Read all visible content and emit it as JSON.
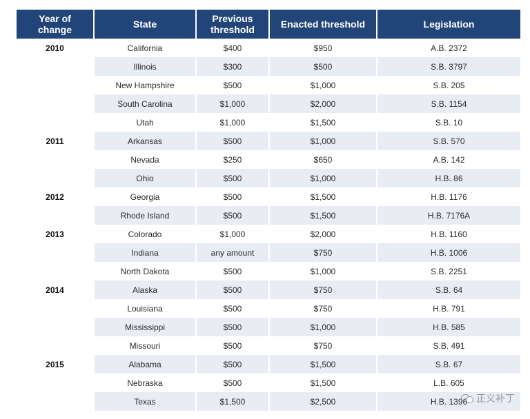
{
  "table": {
    "headers": {
      "year_line1": "Year of",
      "year_line2": "change",
      "state": "State",
      "prev_line1": "Previous",
      "prev_line2": "threshold",
      "enacted": "Enacted threshold",
      "legislation": "Legislation"
    },
    "rows": [
      {
        "year": "2010",
        "state": "California",
        "previous": "$400",
        "enacted": "$950",
        "legislation": "A.B. 2372"
      },
      {
        "year": "",
        "state": "Illinois",
        "previous": "$300",
        "enacted": "$500",
        "legislation": "S.B. 3797"
      },
      {
        "year": "",
        "state": "New Hampshire",
        "previous": "$500",
        "enacted": "$1,000",
        "legislation": "S.B. 205"
      },
      {
        "year": "",
        "state": "South Carolina",
        "previous": "$1,000",
        "enacted": "$2,000",
        "legislation": "S.B. 1154"
      },
      {
        "year": "",
        "state": "Utah",
        "previous": "$1,000",
        "enacted": "$1,500",
        "legislation": "S.B. 10"
      },
      {
        "year": "2011",
        "state": "Arkansas",
        "previous": "$500",
        "enacted": "$1,000",
        "legislation": "S.B. 570"
      },
      {
        "year": "",
        "state": "Nevada",
        "previous": "$250",
        "enacted": "$650",
        "legislation": "A.B. 142"
      },
      {
        "year": "",
        "state": "Ohio",
        "previous": "$500",
        "enacted": "$1,000",
        "legislation": "H.B. 86"
      },
      {
        "year": "2012",
        "state": "Georgia",
        "previous": "$500",
        "enacted": "$1,500",
        "legislation": "H.B. 1176"
      },
      {
        "year": "",
        "state": "Rhode Island",
        "previous": "$500",
        "enacted": "$1,500",
        "legislation": "H.B. 7176A"
      },
      {
        "year": "2013",
        "state": "Colorado",
        "previous": "$1,000",
        "enacted": "$2,000",
        "legislation": "H.B. 1160"
      },
      {
        "year": "",
        "state": "Indiana",
        "previous": "any amount",
        "enacted": "$750",
        "legislation": "H.B. 1006"
      },
      {
        "year": "",
        "state": "North Dakota",
        "previous": "$500",
        "enacted": "$1,000",
        "legislation": "S.B. 2251"
      },
      {
        "year": "2014",
        "state": "Alaska",
        "previous": "$500",
        "enacted": "$750",
        "legislation": "S.B. 64"
      },
      {
        "year": "",
        "state": "Louisiana",
        "previous": "$500",
        "enacted": "$750",
        "legislation": "H.B. 791"
      },
      {
        "year": "",
        "state": "Mississippi",
        "previous": "$500",
        "enacted": "$1,000",
        "legislation": "H.B. 585"
      },
      {
        "year": "",
        "state": "Missouri",
        "previous": "$500",
        "enacted": "$750",
        "legislation": "S.B. 491"
      },
      {
        "year": "2015",
        "state": "Alabama",
        "previous": "$500",
        "enacted": "$1,500",
        "legislation": "S.B. 67"
      },
      {
        "year": "",
        "state": "Nebraska",
        "previous": "$500",
        "enacted": "$1,500",
        "legislation": "L.B. 605"
      },
      {
        "year": "",
        "state": "Texas",
        "previous": "$1,500",
        "enacted": "$2,500",
        "legislation": "H.B. 1396"
      }
    ]
  },
  "watermark": {
    "icon": "wechat-icon",
    "text": "正义补丁"
  },
  "colors": {
    "header_bg": "#214479",
    "stripe_bg": "#e9ecf3"
  }
}
